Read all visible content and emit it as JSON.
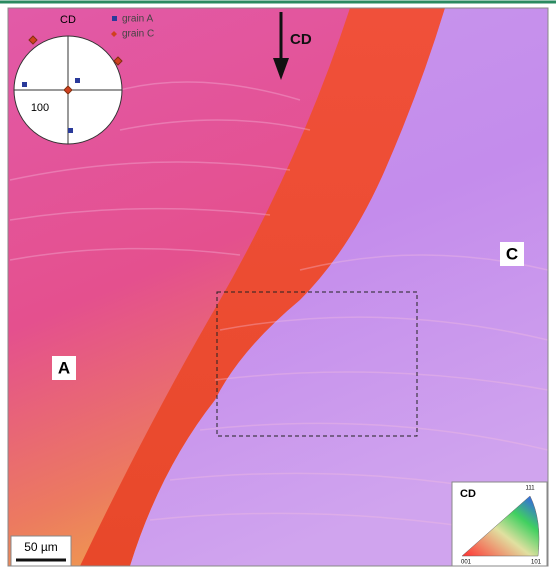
{
  "pole_figure": {
    "axis_label": "CD",
    "legend": [
      "grain A",
      "grain C"
    ],
    "pole_label": "100"
  },
  "direction_label": "CD",
  "grain_labels": [
    "C",
    "A"
  ],
  "scale_bar": "50 µm",
  "ipf_key": {
    "axis_label": "CD",
    "corners": [
      "111",
      "001",
      "101"
    ]
  }
}
